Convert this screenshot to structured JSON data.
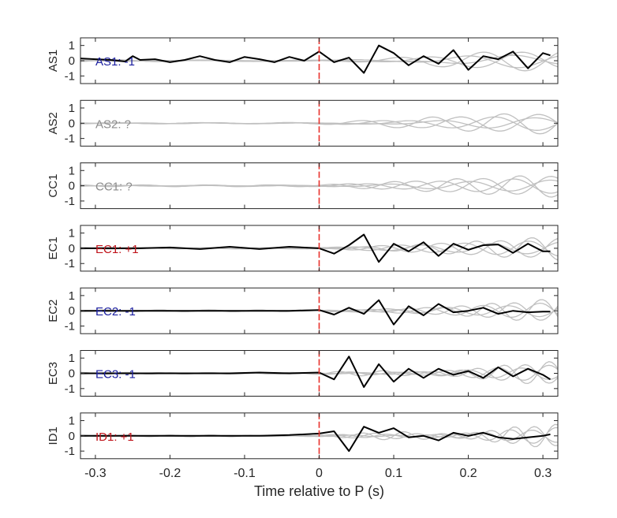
{
  "chart_data": {
    "type": "line",
    "xlabel": "Time relative to P (s)",
    "xlim": [
      -0.32,
      0.32
    ],
    "xticks": [
      -0.3,
      -0.2,
      -0.1,
      0,
      0.1,
      0.2,
      0.3
    ],
    "xtick_labels": [
      "-0.3",
      "-0.2",
      "-0.1",
      "0",
      "0.1",
      "0.2",
      "0.3"
    ],
    "ylim": [
      -1.5,
      1.5
    ],
    "yticks": [
      1,
      0,
      -1
    ],
    "ytick_labels": [
      "1",
      "0",
      "-1"
    ],
    "grid": false,
    "colors": {
      "trace": "#000000",
      "background_traces": "#c0c0c0",
      "p_marker": "#e8312b",
      "positive": "#c0141b",
      "negative": "#1b1fa0",
      "unknown": "#8c8c8c"
    },
    "panels": [
      {
        "ylabel": "AS1",
        "annotation": "AS1: -1",
        "polarity": "negative",
        "series": [
          {
            "x": [
              -0.32,
              -0.3,
              -0.28,
              -0.26,
              -0.25,
              -0.24,
              -0.22,
              -0.2,
              -0.18,
              -0.16,
              -0.14,
              -0.12,
              -0.1,
              -0.08,
              -0.06,
              -0.04,
              -0.02,
              0,
              0.02,
              0.04,
              0.06,
              0.08,
              0.1,
              0.12,
              0.14,
              0.16,
              0.18,
              0.2,
              0.22,
              0.24,
              0.26,
              0.28,
              0.3,
              0.31
            ],
            "y": [
              0.15,
              0.1,
              0.05,
              -0.05,
              0.3,
              0.05,
              0.1,
              -0.1,
              0.05,
              0.3,
              0.05,
              -0.1,
              0.25,
              0.1,
              -0.1,
              0.25,
              0.0,
              0.6,
              -0.1,
              0.2,
              -0.8,
              1.0,
              0.5,
              -0.3,
              0.3,
              -0.2,
              0.7,
              -0.6,
              0.3,
              0.1,
              0.6,
              -0.5,
              0.5,
              0.35
            ]
          }
        ]
      },
      {
        "ylabel": "AS2",
        "annotation": "AS2: ?",
        "polarity": "unknown",
        "series": []
      },
      {
        "ylabel": "CC1",
        "annotation": "CC1: ?",
        "polarity": "unknown",
        "series": []
      },
      {
        "ylabel": "EC1",
        "annotation": "EC1: +1",
        "polarity": "positive",
        "series": [
          {
            "x": [
              -0.32,
              -0.28,
              -0.24,
              -0.2,
              -0.16,
              -0.12,
              -0.08,
              -0.04,
              0,
              0.02,
              0.04,
              0.06,
              0.08,
              0.1,
              0.12,
              0.14,
              0.16,
              0.18,
              0.2,
              0.22,
              0.24,
              0.26,
              0.28,
              0.3,
              0.31
            ],
            "y": [
              0.0,
              0.0,
              0.0,
              0.05,
              -0.05,
              0.1,
              -0.05,
              0.1,
              0.0,
              -0.35,
              0.2,
              0.9,
              -0.9,
              0.3,
              -0.2,
              0.4,
              -0.5,
              0.3,
              -0.1,
              0.2,
              0.25,
              -0.3,
              0.3,
              -0.2,
              -0.2
            ]
          }
        ]
      },
      {
        "ylabel": "EC2",
        "annotation": "EC2: -1",
        "polarity": "negative",
        "series": [
          {
            "x": [
              -0.32,
              -0.28,
              -0.24,
              -0.2,
              -0.16,
              -0.12,
              -0.08,
              -0.04,
              0,
              0.02,
              0.04,
              0.06,
              0.08,
              0.1,
              0.12,
              0.14,
              0.16,
              0.18,
              0.2,
              0.22,
              0.24,
              0.26,
              0.28,
              0.3,
              0.31
            ],
            "y": [
              0.0,
              0.0,
              0.0,
              0.0,
              0.0,
              0.0,
              0.0,
              0.0,
              0.05,
              -0.25,
              0.2,
              -0.2,
              0.7,
              -0.9,
              0.3,
              -0.3,
              0.45,
              -0.1,
              0.0,
              0.2,
              -0.2,
              0.0,
              -0.1,
              -0.05,
              -0.05
            ]
          }
        ]
      },
      {
        "ylabel": "EC3",
        "annotation": "EC3: -1",
        "polarity": "negative",
        "series": [
          {
            "x": [
              -0.32,
              -0.28,
              -0.24,
              -0.2,
              -0.16,
              -0.12,
              -0.08,
              -0.04,
              0,
              0.02,
              0.04,
              0.06,
              0.08,
              0.1,
              0.12,
              0.14,
              0.16,
              0.18,
              0.2,
              0.22,
              0.24,
              0.26,
              0.28,
              0.3,
              0.31
            ],
            "y": [
              0.0,
              0.0,
              0.0,
              0.0,
              0.0,
              0.0,
              0.05,
              0.0,
              0.05,
              -0.4,
              1.1,
              -0.9,
              0.6,
              -0.55,
              0.3,
              -0.3,
              0.3,
              -0.1,
              0.15,
              -0.3,
              0.4,
              -0.2,
              0.3,
              -0.1,
              -0.4
            ]
          }
        ]
      },
      {
        "ylabel": "ID1",
        "annotation": "ID1: +1",
        "polarity": "positive",
        "series": [
          {
            "x": [
              -0.32,
              -0.28,
              -0.24,
              -0.2,
              -0.16,
              -0.12,
              -0.08,
              -0.04,
              0,
              0.02,
              0.04,
              0.06,
              0.08,
              0.1,
              0.12,
              0.14,
              0.16,
              0.18,
              0.2,
              0.22,
              0.24,
              0.26,
              0.28,
              0.3,
              0.31
            ],
            "y": [
              0.0,
              0.0,
              0.0,
              0.0,
              0.0,
              0.0,
              0.0,
              0.05,
              0.15,
              0.3,
              -1.0,
              0.6,
              0.2,
              0.5,
              -0.1,
              0.0,
              -0.3,
              0.2,
              0.0,
              0.2,
              -0.1,
              -0.2,
              -0.1,
              0.0,
              0.1
            ]
          }
        ]
      }
    ]
  }
}
